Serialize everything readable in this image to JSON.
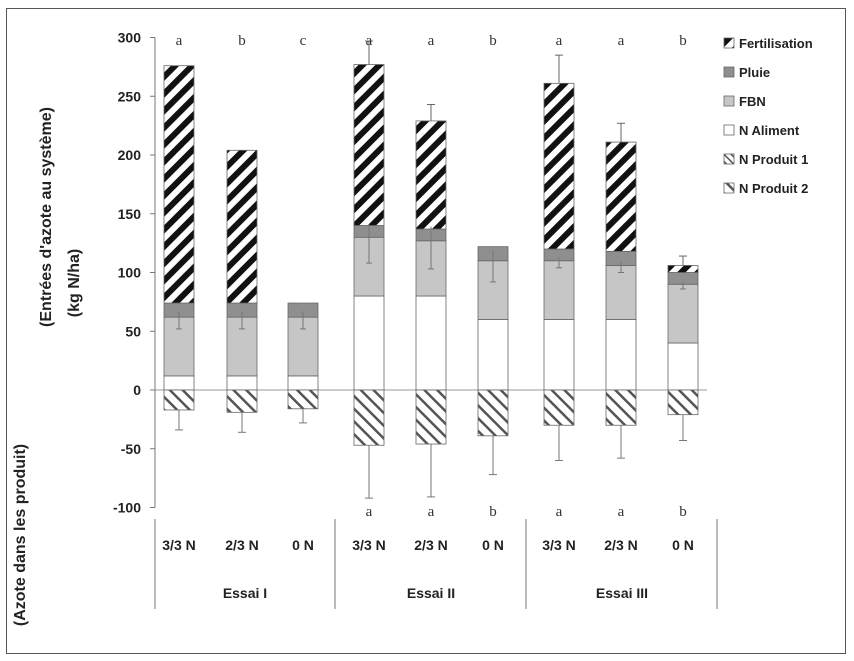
{
  "chart_data": {
    "type": "bar",
    "stacked": true,
    "ylabel_top": "(Entrées d'azote au système)",
    "ylabel_unit": "(kg N/ha)",
    "ylabel_bottom": "(Azote dans les produit)",
    "ylim": [
      -100,
      300
    ],
    "yticks": [
      300,
      250,
      200,
      150,
      100,
      50,
      0,
      -50,
      -100
    ],
    "grid": false,
    "legend_position": "top-right",
    "groups": [
      {
        "label": "Essai I",
        "categories": [
          "3/3 N",
          "2/3 N",
          "0 N"
        ]
      },
      {
        "label": "Essai II",
        "categories": [
          "3/3 N",
          "2/3 N",
          "0 N"
        ]
      },
      {
        "label": "Essai III",
        "categories": [
          "3/3 N",
          "2/3 N",
          "0 N"
        ]
      }
    ],
    "categories": [
      "3/3 N",
      "2/3 N",
      "0 N",
      "3/3 N",
      "2/3 N",
      "0 N",
      "3/3 N",
      "2/3 N",
      "0 N"
    ],
    "series": [
      {
        "name": "N Aliment",
        "pattern": "white",
        "values": [
          12,
          12,
          12,
          80,
          80,
          60,
          60,
          60,
          40
        ]
      },
      {
        "name": "FBN",
        "pattern": "gray",
        "values": [
          50,
          50,
          50,
          50,
          47,
          50,
          50,
          46,
          50
        ]
      },
      {
        "name": "Pluie",
        "pattern": "darkgray",
        "values": [
          12,
          12,
          12,
          10,
          10,
          12,
          10,
          12,
          10
        ]
      },
      {
        "name": "Fertilisation",
        "pattern": "bighatch",
        "values": [
          202,
          130,
          0,
          137,
          92,
          0,
          141,
          93,
          6
        ]
      },
      {
        "name": "N Produit 1",
        "pattern": "smallhatch",
        "values": [
          0,
          0,
          0,
          0,
          0,
          0,
          0,
          0,
          0
        ]
      },
      {
        "name": "N Produit 2",
        "pattern": "hatch",
        "values": [
          -17,
          -19,
          -16,
          -47,
          -46,
          -39,
          -30,
          -30,
          -21
        ]
      }
    ],
    "errors_top": [
      0,
      0,
      0,
      20,
      14,
      0,
      24,
      16,
      8
    ],
    "errors_mid": [
      10,
      10,
      10,
      22,
      24,
      18,
      6,
      6,
      4
    ],
    "errors_bottom": [
      17,
      17,
      12,
      45,
      45,
      33,
      30,
      28,
      22
    ],
    "letters_top": [
      "a",
      "b",
      "c",
      "a",
      "a",
      "b",
      "a",
      "a",
      "b"
    ],
    "letters_bottom": [
      "",
      "",
      "",
      "a",
      "a",
      "b",
      "a",
      "a",
      "b"
    ]
  }
}
